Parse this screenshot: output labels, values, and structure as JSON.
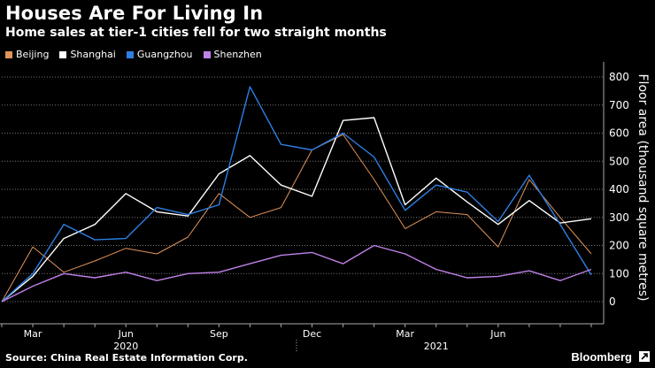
{
  "header": {
    "title": "Houses Are For Living In",
    "subtitle": "Home sales at tier-1 cities fell for two straight months"
  },
  "footer": {
    "source": "Source: China Real Estate Information Corp.",
    "brand": "Bloomberg"
  },
  "chart_data": {
    "type": "line",
    "title": "Houses Are For Living In",
    "subtitle": "Home sales at tier-1 cities fell for two straight months",
    "ylabel": "Floor area (thousand square metres)",
    "xlabel": "",
    "ylim": [
      -50,
      850
    ],
    "yticks": [
      0,
      100,
      200,
      300,
      400,
      500,
      600,
      700,
      800
    ],
    "grid": true,
    "x_tick_labels": [
      {
        "label": "Mar",
        "index": 1
      },
      {
        "label": "Jun",
        "index": 4
      },
      {
        "label": "Sep",
        "index": 7
      },
      {
        "label": "Dec",
        "index": 10
      },
      {
        "label": "Mar",
        "index": 13
      },
      {
        "label": "Jun",
        "index": 16
      }
    ],
    "year_labels": [
      {
        "label": "2020",
        "index": 4
      },
      {
        "label": "2021",
        "index": 14
      }
    ],
    "year_divider_index": 10,
    "series": [
      {
        "name": "Beijing",
        "color": "#e0935a",
        "values": [
          0,
          195,
          105,
          145,
          190,
          170,
          230,
          385,
          300,
          335,
          540,
          595,
          435,
          260,
          320,
          310,
          195,
          435,
          300,
          170
        ]
      },
      {
        "name": "Shanghai",
        "color": "#ffffff",
        "values": [
          0,
          90,
          225,
          275,
          385,
          320,
          305,
          455,
          520,
          415,
          375,
          645,
          655,
          345,
          440,
          355,
          275,
          360,
          280,
          295
        ]
      },
      {
        "name": "Guangzhou",
        "color": "#2d7fe3",
        "values": [
          0,
          100,
          275,
          220,
          225,
          335,
          310,
          345,
          765,
          560,
          540,
          600,
          515,
          325,
          415,
          390,
          285,
          450,
          275,
          95
        ]
      },
      {
        "name": "Shenzhen",
        "color": "#c081e8",
        "values": [
          0,
          55,
          100,
          85,
          105,
          75,
          100,
          105,
          135,
          165,
          175,
          135,
          200,
          170,
          115,
          85,
          90,
          110,
          75,
          115
        ]
      }
    ]
  }
}
